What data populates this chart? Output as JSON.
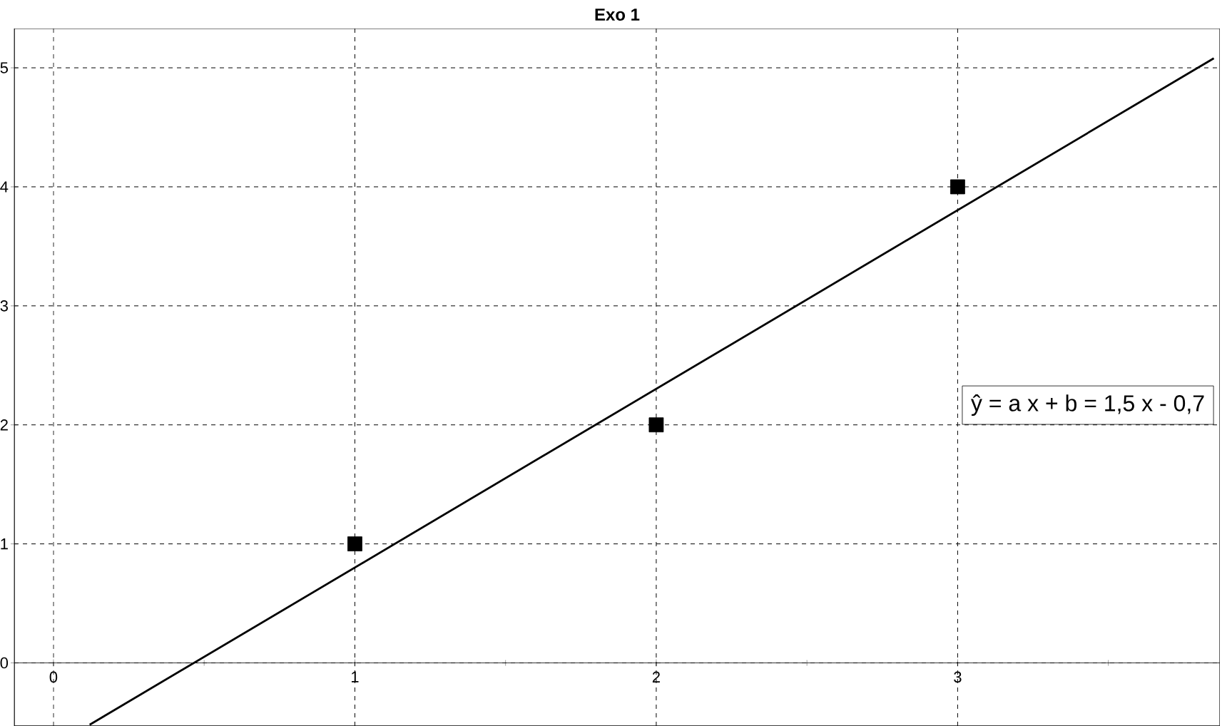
{
  "chart_data": {
    "type": "scatter",
    "title": "Exo 1",
    "marker": "square",
    "series": [
      {
        "color": "#000000",
        "x": [
          1,
          2,
          3
        ],
        "values": [
          1,
          2,
          4
        ]
      },
      {
        "type": "line",
        "color": "#000000",
        "x": [
          0.12,
          3.85
        ],
        "values": [
          -0.52,
          5.08
        ],
        "marker": "none",
        "line_style": "solid"
      }
    ],
    "xlim": [
      -0.13,
      3.87
    ],
    "ylim": [
      -0.53,
      5.33
    ],
    "xticks": [
      0,
      {
        "value": 0.5,
        "label": null
      },
      1,
      {
        "value": 1.5,
        "label": null
      },
      2,
      {
        "value": 2.5,
        "label": null
      },
      3,
      {
        "value": 3.5,
        "label": null
      }
    ],
    "yticks": [
      0,
      1,
      2,
      3,
      4,
      5
    ],
    "grid": true,
    "annotations": [
      "ŷ = a x + b = 1,5 x - 0,7"
    ]
  }
}
